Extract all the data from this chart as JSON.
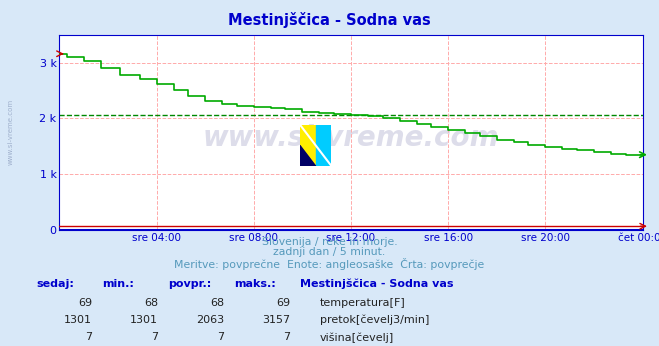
{
  "title": "Mestinjščica - Sodna vas",
  "subtitle1": "Slovenija / reke in morje.",
  "subtitle2": "zadnji dan / 5 minut.",
  "subtitle3": "Meritve: povprečne  Enote: angleosaške  Črta: povprečje",
  "bg_color": "#d8e8f8",
  "plot_bg_color": "#ffffff",
  "grid_color": "#ffaaaa",
  "dashed_line_color": "#008800",
  "dashed_line_value": 2063,
  "ylim": [
    0,
    3500
  ],
  "yticks": [
    0,
    1000,
    2000,
    3000
  ],
  "ytick_labels": [
    "0",
    "1 k",
    "2 k",
    "3 k"
  ],
  "tick_color": "#0000cc",
  "title_color": "#0000cc",
  "watermark": "www.si-vreme.com",
  "watermark_color": "#aaaacc",
  "watermark_alpha": 0.4,
  "xtick_labels": [
    "sre 04:00",
    "sre 08:00",
    "sre 12:00",
    "sre 16:00",
    "sre 20:00",
    "čet 00:00"
  ],
  "xtick_positions": [
    4,
    8,
    12,
    16,
    20,
    24
  ],
  "legend_title": "Mestinjščica - Sodna vas",
  "legend_rows": [
    {
      "sedaj": "69",
      "min": "68",
      "povpr": "68",
      "maks": "69",
      "color": "#cc0000",
      "label": "temperatura[F]"
    },
    {
      "sedaj": "1301",
      "min": "1301",
      "povpr": "2063",
      "maks": "3157",
      "color": "#00aa00",
      "label": "pretok[čevelj3/min]"
    },
    {
      "sedaj": "7",
      "min": "7",
      "povpr": "7",
      "maks": "7",
      "color": "#0000cc",
      "label": "višina[čevelj]"
    }
  ],
  "flow_step_x": [
    0,
    0.3,
    0.3,
    1.0,
    1.0,
    1.7,
    1.7,
    2.5,
    2.5,
    3.3,
    3.3,
    4.0,
    4.0,
    4.7,
    4.7,
    5.3,
    5.3,
    6.0,
    6.0,
    6.7,
    6.7,
    7.3,
    7.3,
    8.0,
    8.0,
    8.7,
    8.7,
    9.3,
    9.3,
    10.0,
    10.0,
    10.7,
    10.7,
    11.3,
    11.3,
    12.0,
    12.0,
    12.7,
    12.7,
    13.3,
    13.3,
    14.0,
    14.0,
    14.7,
    14.7,
    15.3,
    15.3,
    16.0,
    16.0,
    16.7,
    16.7,
    17.3,
    17.3,
    18.0,
    18.0,
    18.7,
    18.7,
    19.3,
    19.3,
    20.0,
    20.0,
    20.7,
    20.7,
    21.3,
    21.3,
    22.0,
    22.0,
    22.7,
    22.7,
    23.3,
    23.3,
    24.0
  ],
  "flow_step_y": [
    3157,
    3157,
    3100,
    3100,
    3020,
    3020,
    2900,
    2900,
    2780,
    2780,
    2700,
    2700,
    2620,
    2620,
    2500,
    2500,
    2400,
    2400,
    2310,
    2310,
    2260,
    2260,
    2230,
    2230,
    2200,
    2200,
    2190,
    2190,
    2160,
    2160,
    2120,
    2120,
    2090,
    2090,
    2070,
    2070,
    2060,
    2060,
    2040,
    2040,
    2010,
    2010,
    1960,
    1960,
    1900,
    1900,
    1840,
    1840,
    1790,
    1790,
    1740,
    1740,
    1680,
    1680,
    1620,
    1620,
    1570,
    1570,
    1530,
    1530,
    1490,
    1490,
    1460,
    1460,
    1430,
    1430,
    1400,
    1400,
    1370,
    1370,
    1350,
    1350
  ],
  "temp_color": "#cc0000",
  "temp_y": 69,
  "height_color": "#0000cc",
  "height_y": 7,
  "flow_color": "#00aa00",
  "spine_color": "#0000cc",
  "side_text": "www.si-vreme.com",
  "side_text_color": "#8899bb"
}
